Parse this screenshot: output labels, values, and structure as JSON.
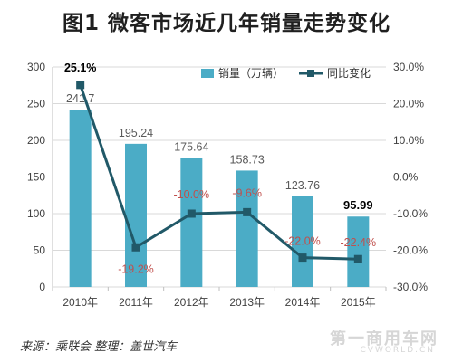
{
  "title": "图1 微客市场近几年销量走势变化",
  "source": "来源：乘联会 整理：盖世汽车",
  "watermark": "第一商用车网",
  "watermark_sub": "CVWORLD.CN",
  "colors": {
    "bar": "#4bacc6",
    "line": "#215968",
    "grid": "#d9d9d9",
    "axis_text": "#404040",
    "pct_negative": "#c0504d",
    "pct_positive": "#000000"
  },
  "chart_data": {
    "type": "bar",
    "title": "图1 微客市场近几年销量走势变化",
    "categories": [
      "2010年",
      "2011年",
      "2012年",
      "2013年",
      "2014年",
      "2015年"
    ],
    "series": [
      {
        "name": "销量（万辆）",
        "type": "bar",
        "axis": "left",
        "values": [
          241.7,
          195.24,
          175.64,
          158.73,
          123.76,
          95.99
        ],
        "labels": [
          "241.7",
          "195.24",
          "175.64",
          "158.73",
          "123.76",
          "95.99"
        ]
      },
      {
        "name": "同比变化",
        "type": "line",
        "axis": "right",
        "values": [
          25.1,
          -19.2,
          -10.0,
          -9.6,
          -22.0,
          -22.4
        ],
        "labels": [
          "25.1%",
          "-19.2%",
          "-10.0%",
          "-9.6%",
          "-22.0%",
          "-22.4%"
        ]
      }
    ],
    "y_left": {
      "min": 0,
      "max": 300,
      "ticks": [
        "0",
        "50",
        "100",
        "150",
        "200",
        "250",
        "300"
      ]
    },
    "y_right": {
      "min": -30,
      "max": 30,
      "ticks": [
        "-30.0%",
        "-20.0%",
        "-10.0%",
        "0.0%",
        "10.0%",
        "20.0%",
        "30.0%"
      ]
    },
    "grid": true,
    "legend_position": "top-right"
  }
}
